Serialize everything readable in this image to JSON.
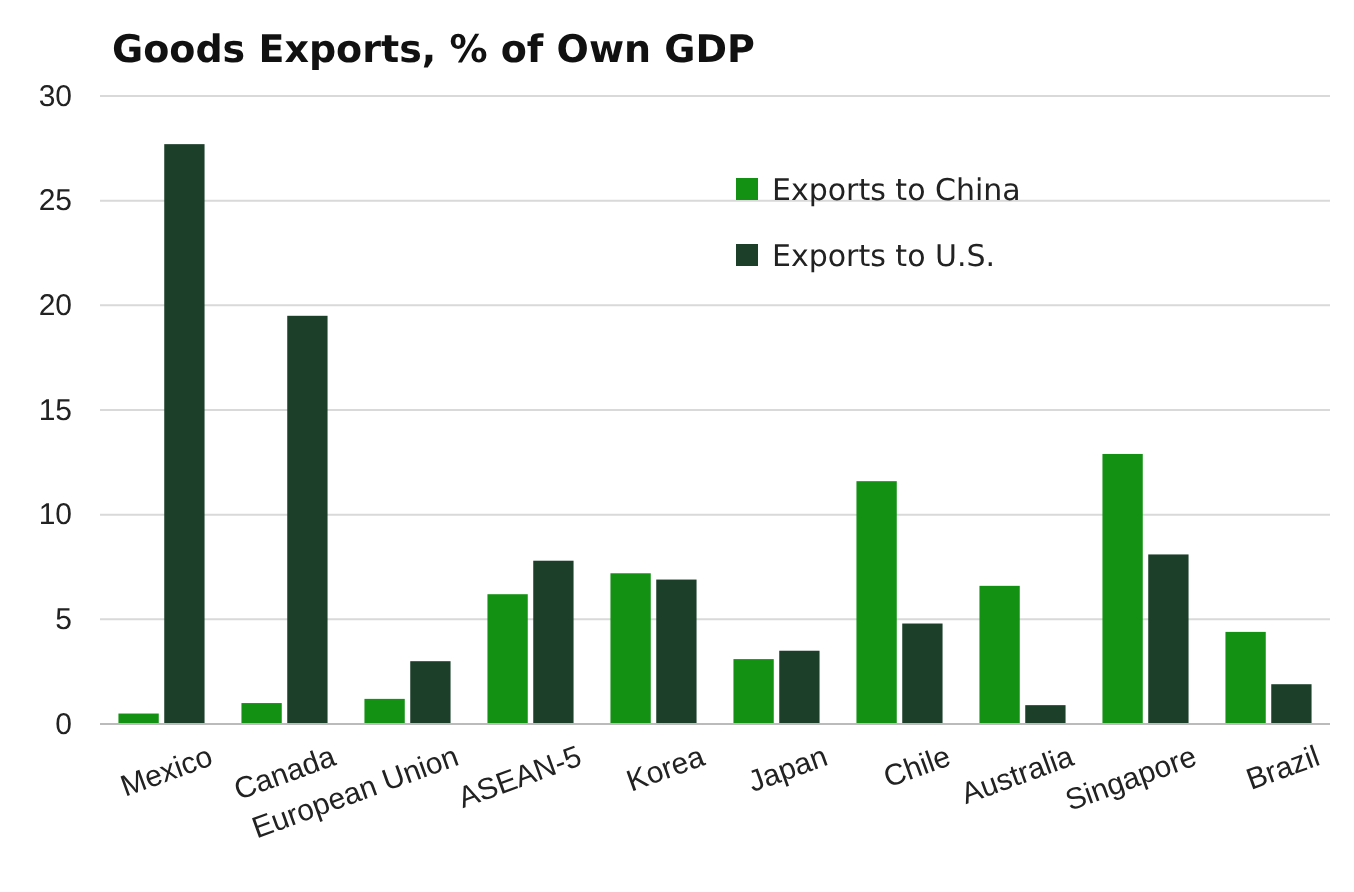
{
  "chart_data": {
    "type": "bar",
    "title": "Goods Exports, % of Own GDP",
    "categories": [
      "Mexico",
      "Canada",
      "European Union",
      "ASEAN-5",
      "Korea",
      "Japan",
      "Chile",
      "Australia",
      "Singapore",
      "Brazil"
    ],
    "series": [
      {
        "name": "Exports to China",
        "color": "#139113",
        "values": [
          0.5,
          1.0,
          1.2,
          6.2,
          7.2,
          3.1,
          11.6,
          6.6,
          12.9,
          4.4
        ]
      },
      {
        "name": "Exports to U.S.",
        "color": "#1b3f28",
        "values": [
          27.7,
          19.5,
          3.0,
          7.8,
          6.9,
          3.5,
          4.8,
          0.9,
          8.1,
          1.9
        ]
      }
    ],
    "ylim": [
      0,
      30
    ],
    "yticks": [
      0,
      5,
      10,
      15,
      20,
      25,
      30
    ],
    "grid": "y",
    "legend": "top right"
  }
}
